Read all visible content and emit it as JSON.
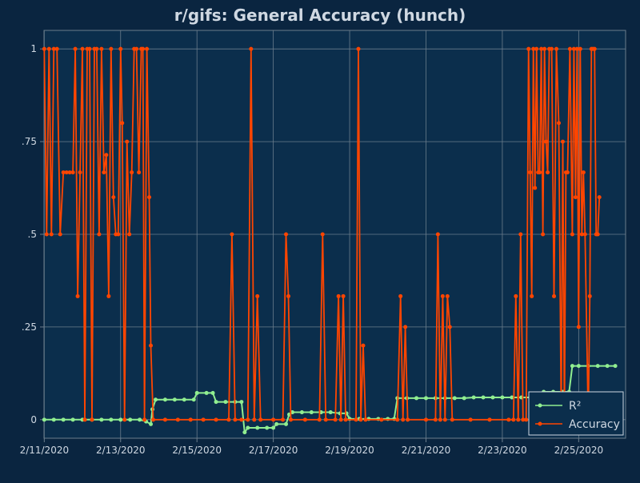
{
  "colors": {
    "page_background": "#0a2540",
    "plot_background": "#0b2e4c",
    "grid": "#6b7d8c",
    "text": "#cfd8e2",
    "r2": "#90ee90",
    "accuracy": "#ff4500"
  },
  "chart_data": {
    "type": "line",
    "title": "r/gifs: General Accuracy (hunch)",
    "xlabel": "",
    "ylabel": "",
    "x_axis_type": "date",
    "xlim": [
      "2020-02-10 23:50",
      "2020-02-26 05:30"
    ],
    "ylim": [
      -0.05,
      1.05
    ],
    "x_tick_labels": [
      "2/11/2020",
      "2/13/2020",
      "2/15/2020",
      "2/17/2020",
      "2/19/2020",
      "2/21/2020",
      "2/23/2020",
      "2/25/2020"
    ],
    "x_tick_values": [
      "2020-02-11",
      "2020-02-13",
      "2020-02-15",
      "2020-02-17",
      "2020-02-19",
      "2020-02-21",
      "2020-02-23",
      "2020-02-25"
    ],
    "y_tick_labels": [
      "0",
      ".25",
      ".5",
      ".75",
      "1"
    ],
    "y_tick_values": [
      0,
      0.25,
      0.5,
      0.75,
      1
    ],
    "grid": true,
    "legend_position": "bottom-right",
    "series": [
      {
        "name": "R²",
        "points": [
          [
            "2020-02-11 00:00",
            0
          ],
          [
            "2020-02-11 06:00",
            0
          ],
          [
            "2020-02-11 12:00",
            0
          ],
          [
            "2020-02-11 18:00",
            0
          ],
          [
            "2020-02-12 00:00",
            0
          ],
          [
            "2020-02-12 06:00",
            0
          ],
          [
            "2020-02-12 12:00",
            0
          ],
          [
            "2020-02-12 18:00",
            0
          ],
          [
            "2020-02-13 00:00",
            0
          ],
          [
            "2020-02-13 06:00",
            0
          ],
          [
            "2020-02-13 12:00",
            0
          ],
          [
            "2020-02-13 16:00",
            -0.005
          ],
          [
            "2020-02-13 19:00",
            -0.012
          ],
          [
            "2020-02-13 20:00",
            0.028
          ],
          [
            "2020-02-13 22:00",
            0.054
          ],
          [
            "2020-02-14 04:00",
            0.054
          ],
          [
            "2020-02-14 10:00",
            0.054
          ],
          [
            "2020-02-14 16:00",
            0.054
          ],
          [
            "2020-02-14 22:00",
            0.054
          ],
          [
            "2020-02-15 00:00",
            0.072
          ],
          [
            "2020-02-15 06:00",
            0.072
          ],
          [
            "2020-02-15 10:00",
            0.072
          ],
          [
            "2020-02-15 12:00",
            0.048
          ],
          [
            "2020-02-15 18:00",
            0.048
          ],
          [
            "2020-02-16 00:00",
            0.048
          ],
          [
            "2020-02-16 04:00",
            0.048
          ],
          [
            "2020-02-16 06:00",
            -0.034
          ],
          [
            "2020-02-16 08:00",
            -0.022
          ],
          [
            "2020-02-16 14:00",
            -0.022
          ],
          [
            "2020-02-16 20:00",
            -0.022
          ],
          [
            "2020-02-17 00:00",
            -0.022
          ],
          [
            "2020-02-17 02:00",
            -0.012
          ],
          [
            "2020-02-17 08:00",
            -0.012
          ],
          [
            "2020-02-17 10:00",
            0.014
          ],
          [
            "2020-02-17 12:00",
            0.02
          ],
          [
            "2020-02-17 18:00",
            0.02
          ],
          [
            "2020-02-18 00:00",
            0.02
          ],
          [
            "2020-02-18 06:00",
            0.02
          ],
          [
            "2020-02-18 12:00",
            0.02
          ],
          [
            "2020-02-18 18:00",
            0.017
          ],
          [
            "2020-02-18 22:00",
            0.017
          ],
          [
            "2020-02-19 00:00",
            0.002
          ],
          [
            "2020-02-19 06:00",
            0.002
          ],
          [
            "2020-02-19 12:00",
            0.002
          ],
          [
            "2020-02-19 18:00",
            0.002
          ],
          [
            "2020-02-20 00:00",
            0.002
          ],
          [
            "2020-02-20 04:00",
            0.002
          ],
          [
            "2020-02-20 06:00",
            0.058
          ],
          [
            "2020-02-20 12:00",
            0.058
          ],
          [
            "2020-02-20 18:00",
            0.058
          ],
          [
            "2020-02-21 00:00",
            0.058
          ],
          [
            "2020-02-21 06:00",
            0.058
          ],
          [
            "2020-02-21 12:00",
            0.058
          ],
          [
            "2020-02-21 18:00",
            0.058
          ],
          [
            "2020-02-22 00:00",
            0.058
          ],
          [
            "2020-02-22 06:00",
            0.06
          ],
          [
            "2020-02-22 12:00",
            0.06
          ],
          [
            "2020-02-22 18:00",
            0.06
          ],
          [
            "2020-02-23 00:00",
            0.06
          ],
          [
            "2020-02-23 06:00",
            0.06
          ],
          [
            "2020-02-23 12:00",
            0.06
          ],
          [
            "2020-02-23 18:00",
            0.06
          ],
          [
            "2020-02-24 00:00",
            0.06
          ],
          [
            "2020-02-24 02:00",
            0.075
          ],
          [
            "2020-02-24 08:00",
            0.075
          ],
          [
            "2020-02-24 14:00",
            0.075
          ],
          [
            "2020-02-24 18:00",
            0.075
          ],
          [
            "2020-02-24 20:00",
            0.145
          ],
          [
            "2020-02-25 00:00",
            0.145
          ],
          [
            "2020-02-25 06:00",
            0.145
          ],
          [
            "2020-02-25 12:00",
            0.145
          ],
          [
            "2020-02-25 18:00",
            0.145
          ],
          [
            "2020-02-25 23:00",
            0.145
          ]
        ]
      },
      {
        "name": "Accuracy",
        "points": [
          [
            "2020-02-11 00:00",
            1
          ],
          [
            "2020-02-11 01:30",
            0.5
          ],
          [
            "2020-02-11 03:00",
            1
          ],
          [
            "2020-02-11 04:30",
            0.5
          ],
          [
            "2020-02-11 06:00",
            1
          ],
          [
            "2020-02-11 08:00",
            1
          ],
          [
            "2020-02-11 10:00",
            0.5
          ],
          [
            "2020-02-11 12:00",
            0.667
          ],
          [
            "2020-02-11 14:00",
            0.667
          ],
          [
            "2020-02-11 16:00",
            0.667
          ],
          [
            "2020-02-11 18:00",
            0.667
          ],
          [
            "2020-02-11 19:30",
            1
          ],
          [
            "2020-02-11 21:00",
            0.333
          ],
          [
            "2020-02-11 22:30",
            0.667
          ],
          [
            "2020-02-12 00:00",
            1
          ],
          [
            "2020-02-12 01:30",
            0
          ],
          [
            "2020-02-12 03:00",
            1
          ],
          [
            "2020-02-12 04:30",
            1
          ],
          [
            "2020-02-12 06:00",
            0
          ],
          [
            "2020-02-12 07:30",
            1
          ],
          [
            "2020-02-12 09:00",
            1
          ],
          [
            "2020-02-12 10:30",
            0.5
          ],
          [
            "2020-02-12 12:00",
            1
          ],
          [
            "2020-02-12 13:30",
            0.667
          ],
          [
            "2020-02-12 15:00",
            0.714
          ],
          [
            "2020-02-12 16:30",
            0.333
          ],
          [
            "2020-02-12 18:00",
            1
          ],
          [
            "2020-02-12 19:30",
            0.6
          ],
          [
            "2020-02-12 21:00",
            0.5
          ],
          [
            "2020-02-12 22:30",
            0.5
          ],
          [
            "2020-02-13 00:00",
            1
          ],
          [
            "2020-02-13 01:00",
            0.8
          ],
          [
            "2020-02-13 02:30",
            0
          ],
          [
            "2020-02-13 04:00",
            0.75
          ],
          [
            "2020-02-13 05:30",
            0.5
          ],
          [
            "2020-02-13 07:00",
            0.667
          ],
          [
            "2020-02-13 08:30",
            1
          ],
          [
            "2020-02-13 10:00",
            1
          ],
          [
            "2020-02-13 11:30",
            0.667
          ],
          [
            "2020-02-13 13:00",
            1
          ],
          [
            "2020-02-13 14:00",
            1
          ],
          [
            "2020-02-13 15:00",
            0
          ],
          [
            "2020-02-13 16:30",
            1
          ],
          [
            "2020-02-13 18:00",
            0.6
          ],
          [
            "2020-02-13 19:00",
            0.2
          ],
          [
            "2020-02-13 20:30",
            0
          ],
          [
            "2020-02-14 04:00",
            0
          ],
          [
            "2020-02-14 12:00",
            0
          ],
          [
            "2020-02-14 20:00",
            0
          ],
          [
            "2020-02-15 04:00",
            0
          ],
          [
            "2020-02-15 12:00",
            0
          ],
          [
            "2020-02-15 20:00",
            0
          ],
          [
            "2020-02-15 22:00",
            0.5
          ],
          [
            "2020-02-16 00:00",
            0
          ],
          [
            "2020-02-16 04:00",
            0
          ],
          [
            "2020-02-16 08:00",
            0
          ],
          [
            "2020-02-16 10:00",
            1
          ],
          [
            "2020-02-16 12:00",
            0
          ],
          [
            "2020-02-16 14:00",
            0.333
          ],
          [
            "2020-02-16 16:00",
            0
          ],
          [
            "2020-02-17 00:00",
            0
          ],
          [
            "2020-02-17 06:00",
            0
          ],
          [
            "2020-02-17 08:00",
            0.5
          ],
          [
            "2020-02-17 09:30",
            0.333
          ],
          [
            "2020-02-17 11:00",
            0
          ],
          [
            "2020-02-17 20:00",
            0
          ],
          [
            "2020-02-18 05:00",
            0
          ],
          [
            "2020-02-18 07:00",
            0.5
          ],
          [
            "2020-02-18 09:00",
            0
          ],
          [
            "2020-02-18 15:00",
            0
          ],
          [
            "2020-02-18 17:00",
            0.333
          ],
          [
            "2020-02-18 18:30",
            0
          ],
          [
            "2020-02-18 20:00",
            0.333
          ],
          [
            "2020-02-18 21:30",
            0
          ],
          [
            "2020-02-19 04:00",
            0
          ],
          [
            "2020-02-19 05:30",
            1
          ],
          [
            "2020-02-19 07:00",
            0
          ],
          [
            "2020-02-19 08:30",
            0.2
          ],
          [
            "2020-02-19 10:00",
            0
          ],
          [
            "2020-02-19 20:00",
            0
          ],
          [
            "2020-02-20 06:00",
            0
          ],
          [
            "2020-02-20 08:00",
            0.333
          ],
          [
            "2020-02-20 09:30",
            0
          ],
          [
            "2020-02-20 11:00",
            0.25
          ],
          [
            "2020-02-20 12:30",
            0
          ],
          [
            "2020-02-21 00:00",
            0
          ],
          [
            "2020-02-21 06:00",
            0
          ],
          [
            "2020-02-21 07:30",
            0.5
          ],
          [
            "2020-02-21 09:00",
            0
          ],
          [
            "2020-02-21 10:30",
            0.333
          ],
          [
            "2020-02-21 12:00",
            0
          ],
          [
            "2020-02-21 13:30",
            0.333
          ],
          [
            "2020-02-21 15:00",
            0.25
          ],
          [
            "2020-02-21 16:30",
            0
          ],
          [
            "2020-02-22 04:00",
            0
          ],
          [
            "2020-02-22 16:00",
            0
          ],
          [
            "2020-02-23 04:00",
            0
          ],
          [
            "2020-02-23 07:00",
            0
          ],
          [
            "2020-02-23 08:30",
            0.333
          ],
          [
            "2020-02-23 10:00",
            0
          ],
          [
            "2020-02-23 11:30",
            0.5
          ],
          [
            "2020-02-23 13:00",
            0
          ],
          [
            "2020-02-23 15:00",
            0
          ],
          [
            "2020-02-23 16:30",
            1
          ],
          [
            "2020-02-23 17:30",
            0.667
          ],
          [
            "2020-02-23 18:30",
            0.333
          ],
          [
            "2020-02-23 19:30",
            1
          ],
          [
            "2020-02-23 20:30",
            0.625
          ],
          [
            "2020-02-23 21:30",
            1
          ],
          [
            "2020-02-23 22:30",
            0.667
          ],
          [
            "2020-02-23 23:30",
            0.667
          ],
          [
            "2020-02-24 00:30",
            1
          ],
          [
            "2020-02-24 01:30",
            0.5
          ],
          [
            "2020-02-24 02:30",
            1
          ],
          [
            "2020-02-24 03:30",
            0.75
          ],
          [
            "2020-02-24 04:30",
            0.667
          ],
          [
            "2020-02-24 05:30",
            1
          ],
          [
            "2020-02-24 07:00",
            1
          ],
          [
            "2020-02-24 08:30",
            0.333
          ],
          [
            "2020-02-24 10:00",
            1
          ],
          [
            "2020-02-24 11:30",
            0.8
          ],
          [
            "2020-02-24 13:00",
            0
          ],
          [
            "2020-02-24 14:00",
            0.75
          ],
          [
            "2020-02-24 15:00",
            0
          ],
          [
            "2020-02-24 16:00",
            0.667
          ],
          [
            "2020-02-24 17:00",
            0.667
          ],
          [
            "2020-02-24 18:30",
            1
          ],
          [
            "2020-02-24 20:00",
            0.5
          ],
          [
            "2020-02-24 21:00",
            1
          ],
          [
            "2020-02-24 22:00",
            0.6
          ],
          [
            "2020-02-24 23:00",
            1
          ],
          [
            "2020-02-25 00:00",
            0.25
          ],
          [
            "2020-02-25 01:00",
            1
          ],
          [
            "2020-02-25 02:00",
            0.5
          ],
          [
            "2020-02-25 03:00",
            0.667
          ],
          [
            "2020-02-25 04:00",
            0.5
          ],
          [
            "2020-02-25 06:00",
            0
          ],
          [
            "2020-02-25 07:00",
            0.333
          ],
          [
            "2020-02-25 08:00",
            1
          ],
          [
            "2020-02-25 09:00",
            1
          ],
          [
            "2020-02-25 10:00",
            1
          ],
          [
            "2020-02-25 11:00",
            0.5
          ],
          [
            "2020-02-25 12:00",
            0.5
          ],
          [
            "2020-02-25 13:00",
            0.6
          ]
        ]
      }
    ]
  }
}
